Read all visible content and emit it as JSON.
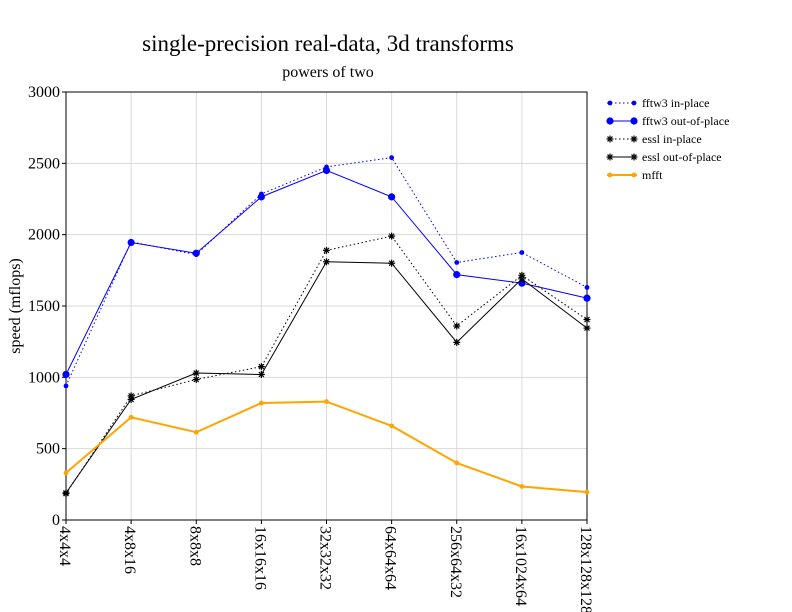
{
  "chart_data": {
    "type": "line",
    "title": "single-precision real-data, 3d transforms",
    "subtitle": "powers of two",
    "xlabel": "",
    "ylabel": "speed (mflops)",
    "ylim": [
      0,
      3000
    ],
    "yticks": [
      0,
      500,
      1000,
      1500,
      2000,
      2500,
      3000
    ],
    "grid": true,
    "legend_position": "right",
    "categories": [
      "4x4x4",
      "4x8x16",
      "8x8x8",
      "16x16x16",
      "32x32x32",
      "64x64x64",
      "256x64x32",
      "16x1024x64",
      "128x128x128"
    ],
    "series": [
      {
        "name": "fftw3 in-place",
        "color": "#0000ff",
        "style": "dotted",
        "marker": "small-dot",
        "values": [
          940,
          1950,
          1860,
          2285,
          2475,
          2540,
          1805,
          1875,
          1630
        ]
      },
      {
        "name": "fftw3 out-of-place",
        "color": "#0000ff",
        "style": "solid",
        "marker": "dot",
        "values": [
          1020,
          1945,
          1870,
          2265,
          2450,
          2265,
          1720,
          1660,
          1555
        ]
      },
      {
        "name": "essl in-place",
        "color": "#000000",
        "style": "dotted",
        "marker": "star",
        "values": [
          185,
          870,
          985,
          1075,
          1890,
          1990,
          1360,
          1715,
          1405
        ]
      },
      {
        "name": "essl out-of-place",
        "color": "#000000",
        "style": "solid",
        "marker": "star",
        "values": [
          190,
          845,
          1030,
          1020,
          1810,
          1800,
          1245,
          1690,
          1345
        ]
      },
      {
        "name": "mfft",
        "color": "#ffa500",
        "style": "solid",
        "marker": "small-dot",
        "values": [
          330,
          720,
          615,
          820,
          830,
          660,
          400,
          235,
          195
        ]
      }
    ]
  }
}
